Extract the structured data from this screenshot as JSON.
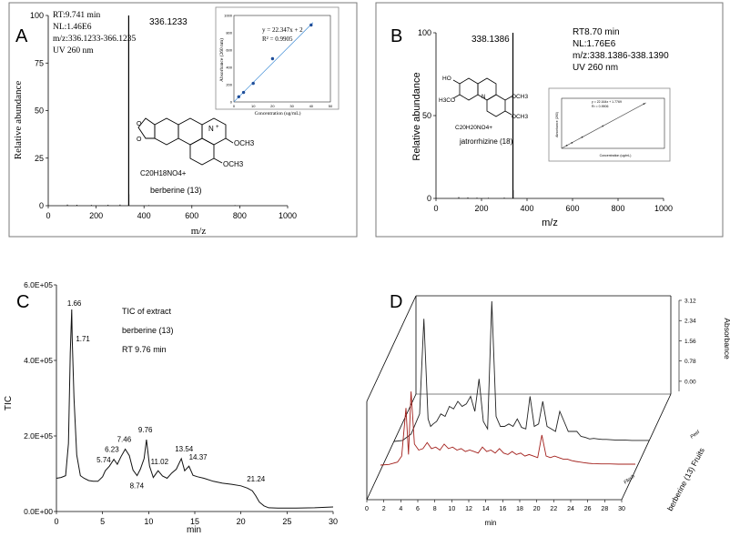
{
  "panels": {
    "A": {
      "letter": "A",
      "info": [
        "RT:9.741 min",
        "NL:1.46E6",
        "m/z:336.1233-366.1235",
        "UV 260 nm"
      ],
      "peak_label": "336.1233",
      "ylabel": "Relative abundance",
      "xlabel": "m/z",
      "formula": "C20H18NO4+",
      "compound_name": "berberine (13)",
      "ome_label": "OCH3",
      "inset": {
        "equation": "y = 22.347x + 2",
        "r2": "R² = 0.9905",
        "ylabel": "Absorbance (260 nm)",
        "xlabel": "Concentration  (ug/mL)"
      }
    },
    "B": {
      "letter": "B",
      "info": [
        "RT8.70 min",
        "NL:1.76E6",
        "m/z:338.1386-338.1390",
        "UV 260 nm"
      ],
      "peak_label": "338.1386",
      "ylabel": "Relative abundance",
      "xlabel": "m/z",
      "formula": "C20H20NO4+",
      "compound_name": "jatrorrhizine (18)",
      "ho_label": "HO",
      "meo_label": "H3CO",
      "ome_label": "OCH3",
      "inset": {
        "equation": "y = 22.164x + 1.7769",
        "r2": "R² = 0.9906",
        "ylabel": "Absorbance (260)",
        "xlabel": "Concentration (ug/mL)"
      }
    },
    "C": {
      "letter": "C",
      "annotations": [
        "TIC of extract",
        "berberine (13)",
        "RT 9.76 min"
      ],
      "ylabel": "TIC",
      "xlabel": "min"
    },
    "D": {
      "letter": "D",
      "zlabel": "Absorbance",
      "xlabel": "min",
      "side_label": "berberine (13) Fruits",
      "series_labels": [
        "Peel",
        "Flesh"
      ]
    }
  },
  "chart_data": [
    {
      "id": "A",
      "type": "bar",
      "title": "",
      "xlabel": "m/z",
      "ylabel": "Relative abundance",
      "xlim": [
        0,
        1000
      ],
      "ylim": [
        0,
        100
      ],
      "xticks": [
        0,
        200,
        400,
        600,
        800,
        1000
      ],
      "yticks": [
        0,
        25,
        50,
        75,
        100
      ],
      "peaks": [
        {
          "x": 336.1233,
          "y": 100
        },
        {
          "x": 337.2,
          "y": 6
        },
        {
          "x": 80,
          "y": 0.6
        },
        {
          "x": 120,
          "y": 0.5
        },
        {
          "x": 180,
          "y": 0.4
        },
        {
          "x": 250,
          "y": 0.5
        },
        {
          "x": 300,
          "y": 0.6
        },
        {
          "x": 420,
          "y": 0.3
        },
        {
          "x": 600,
          "y": 0.3
        },
        {
          "x": 780,
          "y": 0.3
        }
      ],
      "inset": {
        "type": "scatter",
        "xlabel": "Concentration  (ug/mL)",
        "ylabel": "Absorbance (260 nm)",
        "xlim": [
          0,
          50
        ],
        "ylim": [
          0,
          1000
        ],
        "xticks": [
          0,
          10,
          20,
          30,
          40,
          50
        ],
        "yticks": [
          0,
          200,
          400,
          600,
          800,
          1000
        ],
        "points": [
          [
            2.5,
            60
          ],
          [
            5,
            110
          ],
          [
            10,
            215
          ],
          [
            20,
            500
          ],
          [
            40,
            890
          ]
        ],
        "fit": {
          "slope": 22.347,
          "intercept": 2
        }
      }
    },
    {
      "id": "B",
      "type": "bar",
      "title": "",
      "xlabel": "m/z",
      "ylabel": "Relative abundance",
      "xlim": [
        0,
        1000
      ],
      "ylim": [
        0,
        100
      ],
      "xticks": [
        0,
        200,
        400,
        600,
        800,
        1000
      ],
      "yticks": [
        0,
        50,
        100
      ],
      "peaks": [
        {
          "x": 338.1386,
          "y": 100
        },
        {
          "x": 339.2,
          "y": 5
        },
        {
          "x": 100,
          "y": 0.8
        },
        {
          "x": 140,
          "y": 0.6
        },
        {
          "x": 180,
          "y": 0.5
        },
        {
          "x": 230,
          "y": 0.4
        },
        {
          "x": 300,
          "y": 0.5
        }
      ],
      "inset": {
        "type": "scatter",
        "xlabel": "Concentration (ug/mL)",
        "ylabel": "Absorbance (260)",
        "xlim": [
          0,
          50
        ],
        "ylim": [
          0,
          1000
        ],
        "points": [
          [
            2.5,
            57
          ],
          [
            5,
            112
          ],
          [
            10,
            224
          ],
          [
            20,
            446
          ],
          [
            40,
            888
          ]
        ],
        "fit": {
          "slope": 22.164,
          "intercept": 1.7769
        }
      }
    },
    {
      "id": "C",
      "type": "line",
      "title": "",
      "xlabel": "min",
      "ylabel": "TIC",
      "xlim": [
        0,
        30
      ],
      "ylim": [
        0,
        600000
      ],
      "xticks": [
        0,
        5,
        10,
        15,
        20,
        25,
        30
      ],
      "yticks": [
        0,
        200000,
        400000,
        600000
      ],
      "ytick_labels": [
        "0.0E+00",
        "2.0E+05",
        "4.0E+05",
        "6.0E+05"
      ],
      "x": [
        0,
        0.5,
        1.0,
        1.3,
        1.5,
        1.66,
        1.71,
        1.9,
        2.2,
        2.6,
        3.0,
        3.5,
        4.0,
        4.5,
        5.0,
        5.3,
        5.74,
        6.23,
        6.6,
        7.0,
        7.46,
        7.9,
        8.3,
        8.74,
        9.1,
        9.5,
        9.76,
        10.1,
        10.5,
        11.02,
        11.5,
        12.0,
        12.5,
        13.0,
        13.54,
        13.9,
        14.37,
        14.8,
        15.3,
        16.0,
        17.0,
        18.0,
        19.0,
        20.0,
        20.7,
        21.24,
        21.6,
        22.0,
        22.5,
        23.0,
        24.0,
        26.0,
        28.0,
        30.0
      ],
      "y": [
        88000,
        90000,
        95000,
        180000,
        420000,
        535000,
        460000,
        300000,
        150000,
        95000,
        88000,
        82000,
        80000,
        80000,
        92000,
        108000,
        120000,
        138000,
        125000,
        145000,
        165000,
        148000,
        110000,
        95000,
        112000,
        140000,
        190000,
        120000,
        90000,
        108000,
        94000,
        88000,
        102000,
        112000,
        140000,
        108000,
        120000,
        96000,
        92000,
        88000,
        80000,
        75000,
        72000,
        68000,
        62000,
        55000,
        42000,
        25000,
        15000,
        10000,
        9000,
        9000,
        10000,
        12000
      ],
      "labeled_peaks": [
        {
          "x": 1.66,
          "y": 535000,
          "label": "1.66"
        },
        {
          "x": 1.71,
          "y": 460000,
          "label": "1.71"
        },
        {
          "x": 5.74,
          "y": 120000,
          "label": "5.74"
        },
        {
          "x": 6.23,
          "y": 138000,
          "label": "6.23"
        },
        {
          "x": 7.46,
          "y": 165000,
          "label": "7.46"
        },
        {
          "x": 8.74,
          "y": 95000,
          "label": "8.74"
        },
        {
          "x": 9.76,
          "y": 190000,
          "label": "9.76"
        },
        {
          "x": 11.02,
          "y": 108000,
          "label": "11.02"
        },
        {
          "x": 13.54,
          "y": 140000,
          "label": "13.54"
        },
        {
          "x": 14.37,
          "y": 120000,
          "label": "14.37"
        },
        {
          "x": 21.24,
          "y": 55000,
          "label": "21.24"
        }
      ]
    },
    {
      "id": "D",
      "type": "line",
      "title": "",
      "xlabel": "min",
      "zlabel": "Absorbance",
      "xlim": [
        0,
        30
      ],
      "xticks": [
        0,
        2,
        4,
        6,
        8,
        10,
        12,
        14,
        16,
        18,
        20,
        22,
        24,
        26,
        28,
        30
      ],
      "zlim": [
        -0.39,
        3.12
      ],
      "zticks": [
        0.0,
        0.78,
        1.56,
        2.34,
        3.12
      ],
      "ztick_labels": [
        "0.00",
        "0.78",
        "1.56",
        "2.34",
        "3.12"
      ],
      "series": [
        {
          "name": "Peel",
          "color": "#222222",
          "x": [
            0,
            1,
            2,
            3,
            3.5,
            4,
            4.3,
            4.6,
            5,
            5.5,
            6,
            6.5,
            7,
            7.5,
            8,
            8.5,
            9,
            9.5,
            10,
            10.5,
            11,
            11.5,
            12,
            12.5,
            13,
            13.5,
            14,
            14.5,
            15,
            15.5,
            16,
            16.5,
            17,
            17.5,
            18,
            18.5,
            19,
            19.5,
            20,
            20.5,
            21,
            21.5,
            22,
            22.5,
            23,
            23.5,
            24,
            24.5,
            25,
            26,
            27,
            28,
            29,
            30
          ],
          "y": [
            0.0,
            0.02,
            0.15,
            0.55,
            2.45,
            0.45,
            0.3,
            0.35,
            0.4,
            0.55,
            0.5,
            0.7,
            0.65,
            0.8,
            0.7,
            0.75,
            0.9,
            0.6,
            1.25,
            0.4,
            0.25,
            2.8,
            0.5,
            0.3,
            0.3,
            0.35,
            0.3,
            0.45,
            0.28,
            0.25,
            0.9,
            0.3,
            0.35,
            0.8,
            0.3,
            0.25,
            0.2,
            0.6,
            0.4,
            0.2,
            0.2,
            0.2,
            0.1,
            0.08,
            0.05,
            0.06,
            0.05,
            0.04,
            0.04,
            0.03,
            0.03,
            0.02,
            0.02,
            0.02
          ]
        },
        {
          "name": "Flesh",
          "color": "#a3201c",
          "x": [
            0,
            1,
            2,
            2.5,
            3,
            3.3,
            3.6,
            4,
            4.5,
            5,
            5.5,
            6,
            6.5,
            7,
            7.5,
            8,
            8.5,
            9,
            9.5,
            10,
            10.5,
            11,
            11.5,
            12,
            12.5,
            13,
            13.5,
            14,
            14.5,
            15,
            15.5,
            16,
            16.5,
            17,
            17.5,
            18,
            18.5,
            19,
            19.5,
            20,
            20.5,
            21,
            21.5,
            22,
            22.5,
            23,
            23.5,
            24,
            24.5,
            25,
            26,
            27,
            28,
            29,
            30
          ],
          "y": [
            0.0,
            0.02,
            0.1,
            0.3,
            1.9,
            0.35,
            2.45,
            0.7,
            0.5,
            0.55,
            0.75,
            0.55,
            0.6,
            0.5,
            0.7,
            0.55,
            0.6,
            0.5,
            0.55,
            0.45,
            0.5,
            0.45,
            0.4,
            0.6,
            0.45,
            0.5,
            0.4,
            0.55,
            0.4,
            0.35,
            0.45,
            0.35,
            0.4,
            0.3,
            0.35,
            0.3,
            0.25,
            1.0,
            0.3,
            0.25,
            0.3,
            0.25,
            0.2,
            0.2,
            0.15,
            0.12,
            0.1,
            0.08,
            0.06,
            0.05,
            0.04,
            0.04,
            0.03,
            0.03,
            0.03
          ]
        }
      ]
    }
  ]
}
